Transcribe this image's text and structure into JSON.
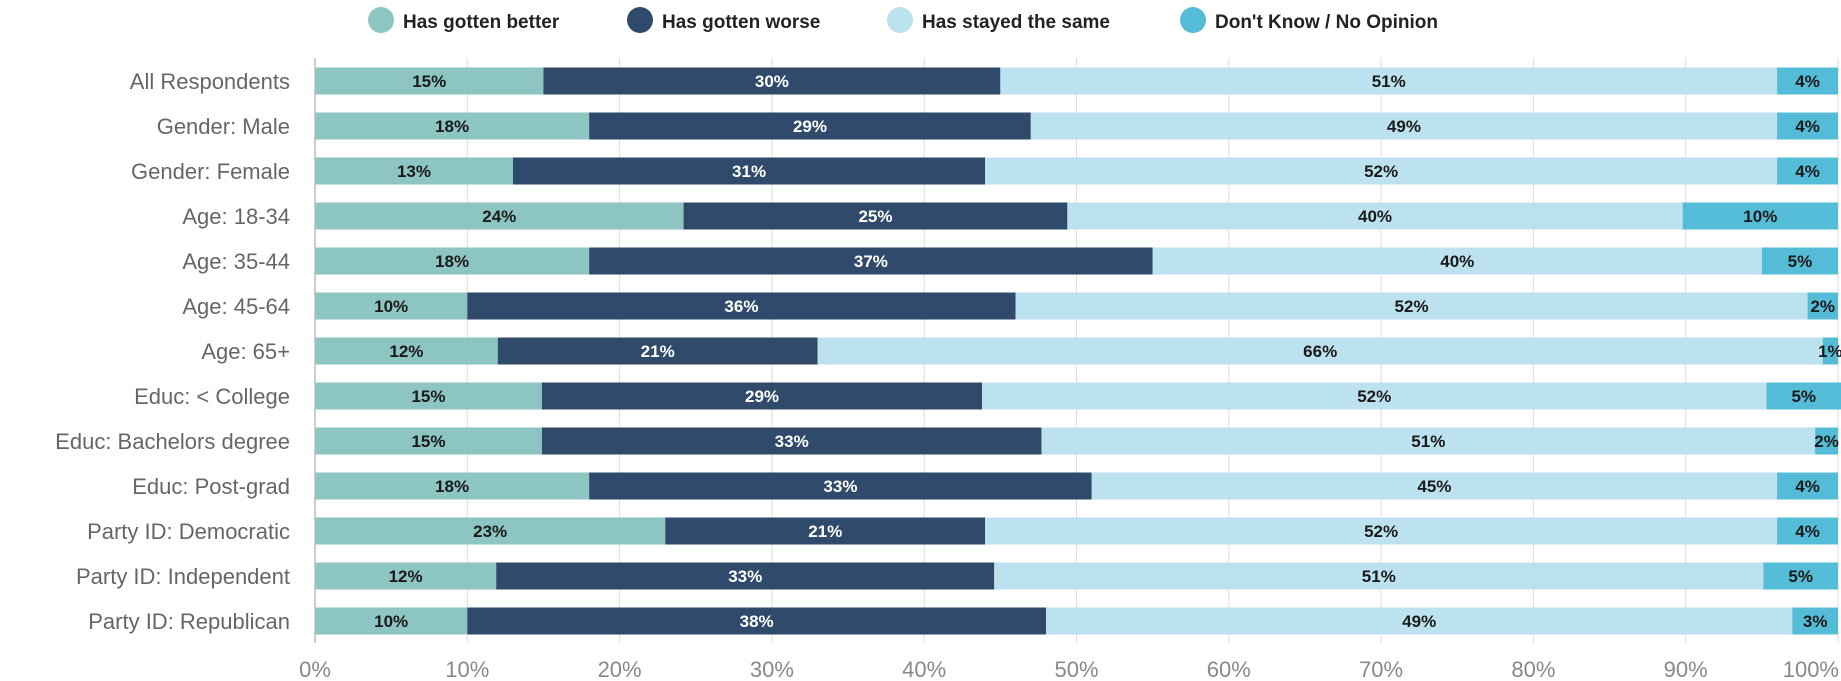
{
  "chart_data": {
    "type": "bar",
    "orientation": "horizontal",
    "stacked": true,
    "title": "",
    "xlabel": "",
    "ylabel": "",
    "xlim": [
      0,
      100
    ],
    "grid": true,
    "legend_position": "top",
    "ticks": [
      "0%",
      "10%",
      "20%",
      "30%",
      "40%",
      "50%",
      "60%",
      "70%",
      "80%",
      "90%",
      "100%"
    ],
    "categories": [
      "All Respondents",
      "Gender: Male",
      "Gender: Female",
      "Age: 18-34",
      "Age: 35-44",
      "Age: 45-64",
      "Age: 65+",
      "Educ: < College",
      "Educ: Bachelors degree",
      "Educ: Post-grad",
      "Party ID: Democratic",
      "Party ID: Independent",
      "Party ID: Republican"
    ],
    "series": [
      {
        "name": "Has gotten better",
        "color": "#8cc5c1",
        "label_color": "#1a1a1a",
        "values": [
          15,
          18,
          13,
          24,
          18,
          10,
          12,
          15,
          15,
          18,
          23,
          12,
          10
        ]
      },
      {
        "name": "Has gotten worse",
        "color": "#2f4a6b",
        "label_color": "#ffffff",
        "values": [
          30,
          29,
          31,
          25,
          37,
          36,
          21,
          29,
          33,
          33,
          21,
          33,
          38
        ]
      },
      {
        "name": "Has stayed the same",
        "color": "#bde2ef",
        "label_color": "#1a1a1a",
        "values": [
          51,
          49,
          52,
          40,
          40,
          52,
          66,
          52,
          51,
          45,
          52,
          51,
          49
        ]
      },
      {
        "name": "Don't Know / No Opinion",
        "color": "#55bcd7",
        "label_color": "#1a1a1a",
        "values": [
          4,
          4,
          4,
          10,
          5,
          2,
          1,
          5,
          2,
          4,
          4,
          5,
          3
        ]
      }
    ],
    "bar_widths": [
      [
        15.0,
        30.0,
        51.0,
        4.0
      ],
      [
        18.0,
        29.0,
        49.0,
        4.0
      ],
      [
        13.0,
        31.0,
        52.0,
        4.0
      ],
      [
        24.2,
        25.2,
        40.4,
        10.2
      ],
      [
        18.0,
        37.0,
        40.0,
        5.0
      ],
      [
        10.0,
        36.0,
        52.0,
        2.0
      ],
      [
        12.0,
        21.0,
        66.0,
        1.0
      ],
      [
        14.9,
        28.9,
        51.5,
        4.9
      ],
      [
        14.9,
        32.8,
        50.8,
        1.5
      ],
      [
        18.0,
        33.0,
        45.0,
        4.0
      ],
      [
        23.0,
        21.0,
        52.0,
        4.0
      ],
      [
        11.9,
        32.7,
        50.5,
        4.9
      ],
      [
        10.0,
        38.0,
        49.0,
        3.0
      ]
    ]
  }
}
